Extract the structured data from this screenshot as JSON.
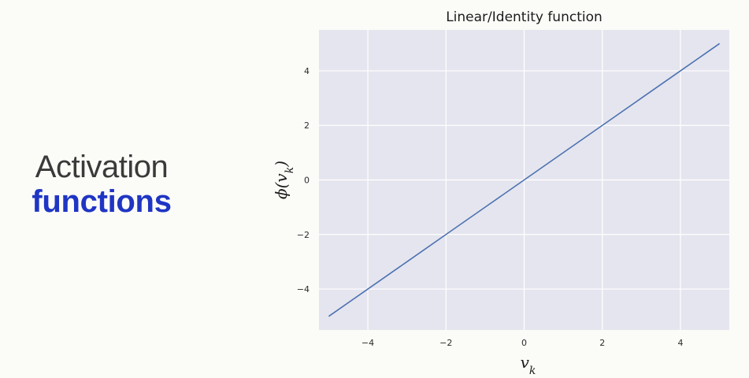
{
  "slide": {
    "title_line1": "Activation",
    "title_line2": "functions"
  },
  "colors": {
    "plot_background": "#e5e5ef",
    "grid": "#ffffff",
    "line": "#4c72b0",
    "title_accent": "#1f35c4"
  },
  "chart_data": {
    "type": "line",
    "title": "Linear/Identity function",
    "xlabel": "v_k",
    "ylabel": "ϕ(v_k)",
    "xlim": [
      -5.25,
      5.25
    ],
    "ylim": [
      -5.5,
      5.5
    ],
    "xticks": [
      -4,
      -2,
      0,
      2,
      4
    ],
    "yticks": [
      -4,
      -2,
      0,
      2,
      4
    ],
    "xtick_labels": [
      "−4",
      "−2",
      "0",
      "2",
      "4"
    ],
    "ytick_labels": [
      "−4",
      "−2",
      "0",
      "2",
      "4"
    ],
    "grid": true,
    "series": [
      {
        "x": [
          -5,
          -4,
          -3,
          -2,
          -1,
          0,
          1,
          2,
          3,
          4,
          5
        ],
        "y": [
          -5,
          -4,
          -3,
          -2,
          -1,
          0,
          1,
          2,
          3,
          4,
          5
        ]
      }
    ]
  }
}
